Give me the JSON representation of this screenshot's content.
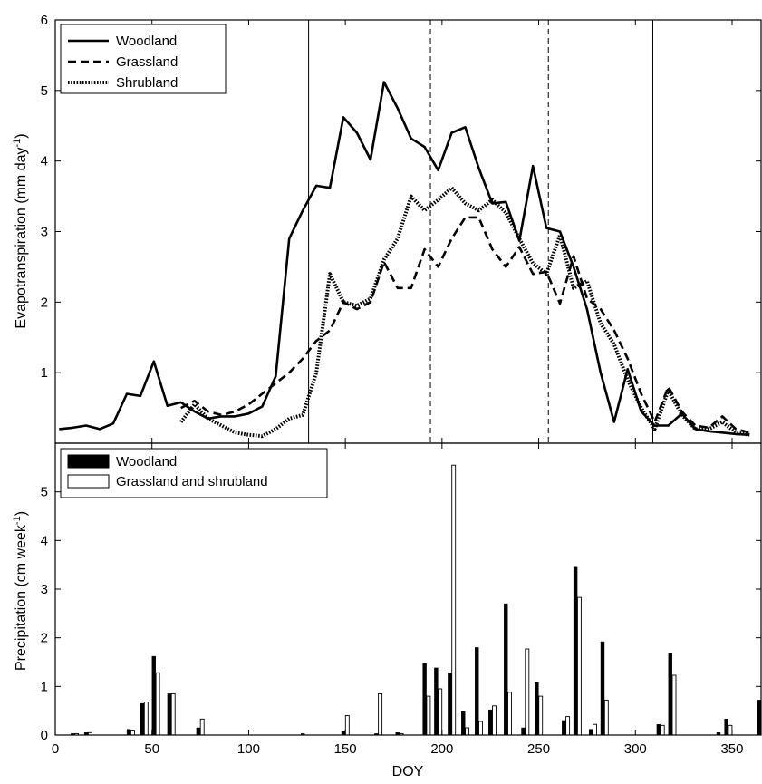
{
  "chart_data": [
    {
      "type": "line",
      "xlabel": "",
      "ylabel": "Evapotranspiration (mm day-1)",
      "xlim": [
        0,
        365
      ],
      "ylim": [
        0,
        6
      ],
      "yticks": [
        1,
        2,
        3,
        4,
        5,
        6
      ],
      "legend": "top-left",
      "grid": false,
      "reference_lines": [
        {
          "x": 131,
          "style": "solid"
        },
        {
          "x": 194,
          "style": "dashed"
        },
        {
          "x": 255,
          "style": "dashed"
        },
        {
          "x": 309,
          "style": "solid"
        }
      ],
      "series": [
        {
          "name": "Woodland",
          "style": "solid",
          "x": [
            2,
            9,
            16,
            23,
            30,
            37,
            44,
            51,
            58,
            65,
            72,
            79,
            86,
            93,
            100,
            107,
            114,
            121,
            128,
            135,
            142,
            149,
            156,
            163,
            170,
            177,
            184,
            191,
            198,
            205,
            212,
            219,
            226,
            233,
            240,
            247,
            254,
            261,
            268,
            275,
            282,
            289,
            296,
            303,
            310,
            317,
            324,
            331,
            338,
            345,
            352,
            359
          ],
          "y": [
            0.2,
            0.22,
            0.25,
            0.2,
            0.28,
            0.7,
            0.67,
            1.16,
            0.53,
            0.58,
            0.45,
            0.35,
            0.38,
            0.38,
            0.42,
            0.52,
            0.95,
            2.9,
            3.3,
            3.65,
            3.62,
            4.62,
            4.4,
            4.02,
            5.12,
            4.75,
            4.32,
            4.2,
            3.87,
            4.4,
            4.48,
            3.9,
            3.4,
            3.42,
            2.87,
            3.93,
            3.05,
            3.0,
            2.5,
            1.9,
            1.0,
            0.3,
            1.05,
            0.45,
            0.25,
            0.25,
            0.42,
            0.2,
            0.17,
            0.15,
            0.13,
            0.12
          ]
        },
        {
          "name": "Grassland",
          "style": "dashed",
          "x": [
            65,
            72,
            79,
            86,
            93,
            100,
            107,
            114,
            121,
            128,
            135,
            142,
            149,
            156,
            163,
            170,
            177,
            184,
            191,
            198,
            205,
            212,
            219,
            226,
            233,
            240,
            247,
            254,
            261,
            268,
            275,
            282,
            289,
            296,
            303,
            310,
            317,
            324,
            331,
            338,
            345,
            352,
            359
          ],
          "y": [
            0.5,
            0.6,
            0.45,
            0.4,
            0.45,
            0.55,
            0.7,
            0.85,
            1.0,
            1.2,
            1.45,
            1.6,
            2.0,
            1.9,
            2.0,
            2.57,
            2.2,
            2.2,
            2.75,
            2.5,
            2.9,
            3.2,
            3.2,
            2.75,
            2.5,
            2.78,
            2.4,
            2.43,
            1.98,
            2.65,
            2.05,
            1.9,
            1.6,
            1.2,
            0.7,
            0.3,
            0.8,
            0.45,
            0.25,
            0.22,
            0.38,
            0.2,
            0.15
          ]
        },
        {
          "name": "Shrubland",
          "style": "dotted",
          "x": [
            65,
            72,
            79,
            86,
            93,
            100,
            107,
            114,
            121,
            128,
            135,
            142,
            149,
            156,
            163,
            170,
            177,
            184,
            191,
            198,
            205,
            212,
            219,
            226,
            233,
            240,
            247,
            254,
            261,
            268,
            275,
            282,
            289,
            296,
            303,
            310,
            317,
            324,
            331,
            338,
            345,
            352,
            359
          ],
          "y": [
            0.3,
            0.55,
            0.35,
            0.25,
            0.15,
            0.12,
            0.1,
            0.2,
            0.35,
            0.4,
            1.0,
            2.4,
            2.0,
            1.95,
            2.05,
            2.6,
            2.9,
            3.5,
            3.3,
            3.45,
            3.62,
            3.4,
            3.3,
            3.45,
            3.27,
            2.9,
            2.55,
            2.4,
            2.95,
            2.2,
            2.3,
            1.7,
            1.4,
            0.9,
            0.5,
            0.2,
            0.75,
            0.4,
            0.2,
            0.2,
            0.3,
            0.15,
            0.12
          ]
        }
      ]
    },
    {
      "type": "bar",
      "xlabel": "DOY",
      "ylabel": "Precipitation (cm week-1)",
      "xlim": [
        0,
        365
      ],
      "ylim": [
        0,
        6
      ],
      "xticks": [
        0,
        50,
        100,
        150,
        200,
        250,
        300,
        350
      ],
      "yticks": [
        0,
        1,
        2,
        3,
        4,
        5
      ],
      "legend": "top-left",
      "grid": false,
      "series": [
        {
          "name": "Woodland",
          "fill": "#000000",
          "x": [
            9,
            16,
            38,
            45,
            51,
            59,
            74,
            128,
            149,
            166,
            177,
            191,
            197,
            204,
            211,
            218,
            225,
            233,
            242,
            249,
            263,
            269,
            277,
            283,
            312,
            318,
            343,
            347,
            365
          ],
          "values": [
            0.03,
            0.05,
            0.12,
            0.65,
            1.62,
            0.85,
            0.15,
            0.03,
            0.08,
            0.03,
            0.05,
            1.47,
            1.38,
            1.28,
            0.48,
            1.8,
            0.52,
            2.7,
            0.15,
            1.08,
            0.3,
            3.45,
            0.12,
            1.92,
            0.22,
            1.68,
            0.05,
            0.33,
            0.72
          ]
        },
        {
          "name": "Grassland and shrubland",
          "fill": "#ffffff",
          "x": [
            11,
            18,
            40,
            47,
            53,
            61,
            76,
            151,
            168,
            179,
            193,
            199,
            206,
            213,
            220,
            227,
            235,
            244,
            251,
            265,
            271,
            279,
            285,
            314,
            320,
            349
          ],
          "values": [
            0.03,
            0.05,
            0.1,
            0.68,
            1.28,
            0.85,
            0.33,
            0.4,
            0.85,
            0.03,
            0.8,
            0.95,
            5.55,
            0.15,
            0.28,
            0.6,
            0.88,
            1.77,
            0.8,
            0.38,
            2.83,
            0.22,
            0.72,
            0.2,
            1.23,
            0.2
          ]
        }
      ]
    }
  ]
}
